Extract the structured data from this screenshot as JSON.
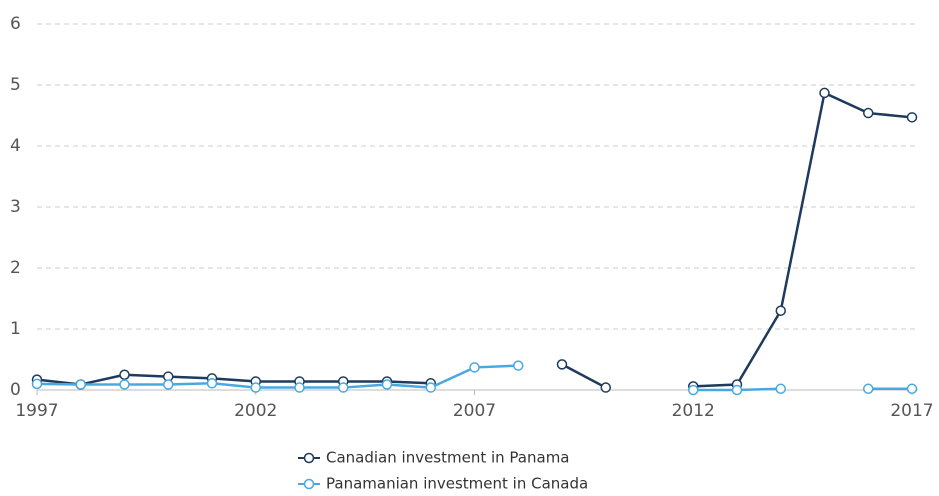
{
  "chart_data": {
    "type": "line",
    "x": [
      1997,
      1998,
      1999,
      2000,
      2001,
      2002,
      2003,
      2004,
      2005,
      2006,
      2007,
      2008,
      2009,
      2010,
      2011,
      2012,
      2013,
      2014,
      2015,
      2016,
      2017
    ],
    "series": [
      {
        "name": "Canadian investment in Panama",
        "color": "#1e3a5c",
        "values": [
          0.17,
          0.09,
          0.25,
          0.22,
          0.19,
          0.14,
          0.14,
          0.14,
          0.14,
          0.11,
          null,
          null,
          0.42,
          0.04,
          null,
          0.06,
          0.09,
          1.3,
          4.87,
          4.54,
          4.47
        ]
      },
      {
        "name": "Panamanian investment in Canada",
        "color": "#4aa8e0",
        "values": [
          0.1,
          0.09,
          0.09,
          0.09,
          0.11,
          0.04,
          0.04,
          0.04,
          0.09,
          0.04,
          0.37,
          0.4,
          null,
          null,
          null,
          0,
          0,
          0.02,
          null,
          0.02,
          0.02
        ]
      }
    ],
    "xlim": [
      1997,
      2017
    ],
    "xticks": [
      1997,
      2002,
      2007,
      2012,
      2017
    ],
    "ylim": [
      0,
      6
    ],
    "yticks": [
      0,
      1,
      2,
      3,
      4,
      5,
      6
    ],
    "grid": true
  }
}
